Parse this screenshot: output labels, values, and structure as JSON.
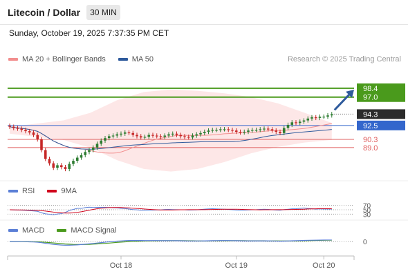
{
  "header": {
    "title": "Litecoin / Dollar",
    "timeframe": "30 MIN",
    "datetime": "Sunday, October 19, 2025 7:37:35 PM CET"
  },
  "legend_main": [
    {
      "label": "MA 20 + Bollinger Bands",
      "color": "#f28e8e"
    },
    {
      "label": "MA 50",
      "color": "#2e5a9c"
    }
  ],
  "credit": "Research © 2025 Trading Central",
  "legend_rsi": [
    {
      "label": "RSI",
      "color": "#5b7fd6"
    },
    {
      "label": "9MA",
      "color": "#d0021b"
    }
  ],
  "legend_macd": [
    {
      "label": "MACD",
      "color": "#5b7fd6"
    },
    {
      "label": "MACD Signal",
      "color": "#4a9a1c"
    }
  ],
  "colors": {
    "up": "#2e7d32",
    "down": "#c62828",
    "resistance": "#4a9a1c",
    "pivot": "#3366cc",
    "support": "#e06060",
    "last": "#2b2b2b",
    "arrow": "#2e5a9c",
    "band": "#fde3e3"
  },
  "chart_data": {
    "type": "candlestick",
    "y_range": [
      84.5,
      102
    ],
    "x_ticks": [
      {
        "label": "Oct 18",
        "index": 28
      },
      {
        "label": "Oct 19",
        "index": 57
      },
      {
        "label": "Oct 20",
        "index": 79
      }
    ],
    "levels": [
      {
        "value": 98.4,
        "kind": "resistance"
      },
      {
        "value": 97.0,
        "kind": "resistance"
      },
      {
        "value": 94.3,
        "kind": "last"
      },
      {
        "value": 92.5,
        "kind": "pivot"
      },
      {
        "value": 90.3,
        "kind": "support"
      },
      {
        "value": 89.0,
        "kind": "support"
      }
    ],
    "closes": [
      92.3,
      92.1,
      92.0,
      91.8,
      91.6,
      91.4,
      91.0,
      90.3,
      88.6,
      87.2,
      86.5,
      85.8,
      86.2,
      85.9,
      85.6,
      86.4,
      86.9,
      87.4,
      87.8,
      88.3,
      88.6,
      89.0,
      89.6,
      90.1,
      90.5,
      90.8,
      90.9,
      91.1,
      91.2,
      91.4,
      91.3,
      91.0,
      90.8,
      90.6,
      90.7,
      91.0,
      90.9,
      90.8,
      90.7,
      90.9,
      91.1,
      91.2,
      91.0,
      90.8,
      90.7,
      90.6,
      90.9,
      91.1,
      91.3,
      91.5,
      91.7,
      91.8,
      91.8,
      91.9,
      91.9,
      91.8,
      91.7,
      91.5,
      91.4,
      91.5,
      91.7,
      91.8,
      91.8,
      91.9,
      92.0,
      91.9,
      91.7,
      91.5,
      91.3,
      92.1,
      92.6,
      93.0,
      92.9,
      93.1,
      93.3,
      93.6,
      93.8,
      93.7,
      93.9,
      93.9,
      94.1,
      94.3
    ],
    "bands": {
      "upper": [
        92.3,
        92.8,
        93.3,
        94.5,
        96.5,
        97.8,
        98.2,
        98.0,
        97.6,
        97.0,
        96.0,
        94.5,
        92.9
      ],
      "lower": [
        91.2,
        90.7,
        90.2,
        89.0,
        87.0,
        85.6,
        85.2,
        85.6,
        86.7,
        88.1,
        89.1,
        89.8,
        90.2
      ]
    },
    "rsi_levels": [
      70,
      50,
      30
    ],
    "macd_levels": [
      0
    ]
  }
}
